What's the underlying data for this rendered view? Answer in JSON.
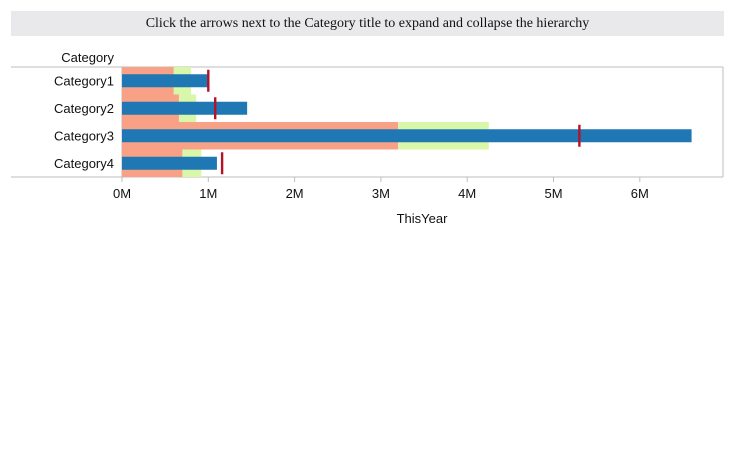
{
  "banner": {
    "text": "Click the arrows next to the Category title to expand and collapse the hierarchy"
  },
  "chart_data": {
    "type": "bar",
    "subtype": "bullet",
    "orientation": "horizontal",
    "category_header": "Category",
    "categories": [
      "Category1",
      "Category2",
      "Category3",
      "Category4"
    ],
    "xlabel": "ThisYear",
    "xlim": [
      0,
      6800000
    ],
    "x_ticks": [
      0,
      1000000,
      2000000,
      3000000,
      4000000,
      5000000,
      6000000
    ],
    "x_tick_labels": [
      "0M",
      "1M",
      "2M",
      "3M",
      "4M",
      "5M",
      "6M"
    ],
    "grid": false,
    "legend": "none",
    "ranges": [
      {
        "colors": [
          "#f9a187",
          "#d8f7a8"
        ],
        "bands": [
          [
            600000,
            800000
          ],
          [
            660000,
            860000
          ],
          [
            3200000,
            4250000
          ],
          [
            700000,
            920000
          ]
        ]
      }
    ],
    "series": [
      {
        "values": [
          1000000,
          1450000,
          6600000,
          1100000
        ]
      }
    ],
    "targets": [
      1000000,
      1080000,
      5300000,
      1160000
    ],
    "colors": {
      "range_low": "#f9a187",
      "range_high": "#d8f7a8",
      "bar": "#1f77b4",
      "target": "#b5122a",
      "frame": "#bdbdbd"
    }
  }
}
